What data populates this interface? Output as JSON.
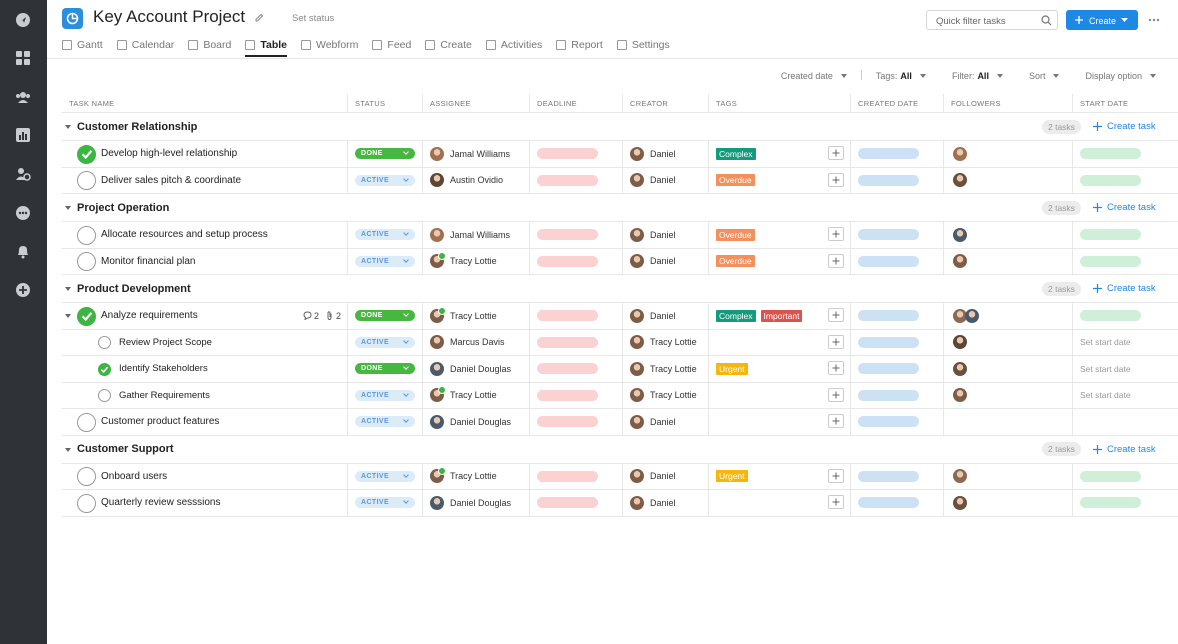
{
  "header": {
    "title": "Key Account Project",
    "set_status": "Set status",
    "search_placeholder": "Quick filter tasks",
    "create": "Create"
  },
  "tabs": [
    "Gantt",
    "Calendar",
    "Board",
    "Table",
    "Webform",
    "Feed",
    "Create",
    "Activities",
    "Report",
    "Settings"
  ],
  "active_tab": 3,
  "toolbar": [
    {
      "label": "Created date"
    },
    {
      "label": "Tags:",
      "value": "All"
    },
    {
      "label": "Filter:",
      "value": "All"
    },
    {
      "label": "Sort"
    },
    {
      "label": "Display option"
    }
  ],
  "table": {
    "columns": [
      "TASK NAME",
      "STATUS",
      "ASSIGNEE",
      "DEADLINE",
      "CREATOR",
      "TAGS",
      "CREATED DATE",
      "FOLLOWERS",
      "START DATE"
    ],
    "groups": [
      {
        "name": "Customer Relationship",
        "count": "2 tasks",
        "create": "Create task",
        "rows": [
          {
            "name": "Develop high-level relationship",
            "done": true,
            "status": "DONE",
            "assignee": "Jamal Williams",
            "creator": "Daniel",
            "tags": [
              {
                "name": "Complex",
                "color": "#159a7b"
              }
            ],
            "followers": 1
          },
          {
            "name": "Deliver sales pitch & coordinate",
            "done": false,
            "status": "ACTIVE",
            "assignee": "Austin Ovidio",
            "creator": "Daniel",
            "tags": [
              {
                "name": "Overdue",
                "color": "#f3905c"
              }
            ],
            "followers": 1
          }
        ]
      },
      {
        "name": "Project Operation",
        "count": "2 tasks",
        "create": "Create task",
        "rows": [
          {
            "name": "Allocate resources and setup process",
            "done": false,
            "status": "ACTIVE",
            "assignee": "Jamal Williams",
            "creator": "Daniel",
            "tags": [
              {
                "name": "Overdue",
                "color": "#f3905c"
              }
            ],
            "followers": 1
          },
          {
            "name": "Monitor financial plan",
            "done": false,
            "status": "ACTIVE",
            "assignee": "Tracy Lottie",
            "assignee_online": true,
            "creator": "Daniel",
            "tags": [
              {
                "name": "Overdue",
                "color": "#f3905c"
              }
            ],
            "followers": 1
          }
        ]
      },
      {
        "name": "Product Development",
        "count": "2 tasks",
        "create": "Create task",
        "rows": [
          {
            "name": "Analyze requirements",
            "done": true,
            "expanded": true,
            "comments": 2,
            "attachments": 2,
            "status": "DONE",
            "assignee": "Tracy Lottie",
            "assignee_online": true,
            "creator": "Daniel",
            "tags": [
              {
                "name": "Complex",
                "color": "#159a7b"
              },
              {
                "name": "Important",
                "color": "#d9534f"
              }
            ],
            "followers": 2
          },
          {
            "name": "Review Project Scope",
            "subtask": true,
            "done": false,
            "status": "ACTIVE",
            "assignee": "Marcus Davis",
            "creator": "Tracy Lottie",
            "tags": [],
            "followers": 1,
            "start_date": "Set start date"
          },
          {
            "name": "Identify Stakeholders",
            "subtask": true,
            "done": true,
            "status": "DONE",
            "assignee": "Daniel Douglas",
            "creator": "Tracy Lottie",
            "tags": [
              {
                "name": "Urgent",
                "color": "#f5b70f"
              }
            ],
            "followers": 1,
            "start_date": "Set start date"
          },
          {
            "name": "Gather Requirements",
            "subtask": true,
            "done": false,
            "status": "ACTIVE",
            "assignee": "Tracy Lottie",
            "assignee_online": true,
            "creator": "Tracy Lottie",
            "tags": [],
            "followers": 1,
            "start_date": "Set start date"
          },
          {
            "name": "Customer product features",
            "done": false,
            "status": "ACTIVE",
            "assignee": "Daniel Douglas",
            "creator": "Daniel",
            "tags": [],
            "followers": 0,
            "start_date": null
          }
        ]
      },
      {
        "name": "Customer Support",
        "count": "2 tasks",
        "create": "Create task",
        "rows": [
          {
            "name": "Onboard users",
            "done": false,
            "status": "ACTIVE",
            "assignee": "Tracy Lottie",
            "assignee_online": true,
            "creator": "Daniel",
            "tags": [
              {
                "name": "Urgent",
                "color": "#f5b70f"
              }
            ],
            "followers": 1
          },
          {
            "name": "Quarterly review sesssions",
            "done": false,
            "status": "ACTIVE",
            "assignee": "Daniel Douglas",
            "creator": "Daniel",
            "tags": [],
            "followers": 1
          }
        ]
      }
    ]
  }
}
